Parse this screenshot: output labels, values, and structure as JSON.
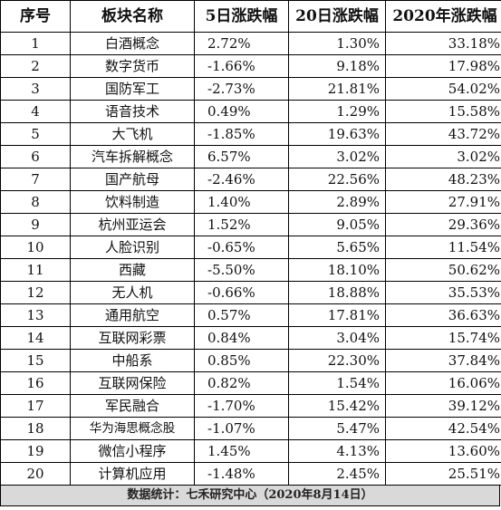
{
  "headers": [
    "序号",
    "板块名称",
    "5日涨跌幅",
    "20日涨跌幅",
    "2020年涨跌幅"
  ],
  "rows": [
    [
      "1",
      "白酒概念",
      "2.72%",
      "1.30%",
      "33.18%"
    ],
    [
      "2",
      "数字货币",
      "-1.66%",
      "9.18%",
      "17.98%"
    ],
    [
      "3",
      "国防军工",
      "-2.73%",
      "21.81%",
      "54.02%"
    ],
    [
      "4",
      "语音技术",
      "0.49%",
      "1.29%",
      "15.58%"
    ],
    [
      "5",
      "大飞机",
      "-1.85%",
      "19.63%",
      "43.72%"
    ],
    [
      "6",
      "汽车拆解概念",
      "6.57%",
      "3.02%",
      "3.02%"
    ],
    [
      "7",
      "国产航母",
      "-2.46%",
      "22.56%",
      "48.23%"
    ],
    [
      "8",
      "饮料制造",
      "1.40%",
      "2.89%",
      "27.91%"
    ],
    [
      "9",
      "杭州亚运会",
      "1.52%",
      "9.05%",
      "29.36%"
    ],
    [
      "10",
      "人脸识别",
      "-0.65%",
      "5.65%",
      "11.54%"
    ],
    [
      "11",
      "西藏",
      "-5.50%",
      "18.10%",
      "50.62%"
    ],
    [
      "12",
      "无人机",
      "-0.66%",
      "18.88%",
      "35.53%"
    ],
    [
      "13",
      "通用航空",
      "0.57%",
      "17.81%",
      "36.63%"
    ],
    [
      "14",
      "互联网彩票",
      "0.84%",
      "3.04%",
      "15.74%"
    ],
    [
      "15",
      "中船系",
      "0.85%",
      "22.30%",
      "37.84%"
    ],
    [
      "16",
      "互联网保险",
      "0.82%",
      "1.54%",
      "16.06%"
    ],
    [
      "17",
      "军民融合",
      "-1.70%",
      "15.42%",
      "39.12%"
    ],
    [
      "18",
      "华为海思概念股",
      "-1.07%",
      "5.47%",
      "42.54%"
    ],
    [
      "19",
      "微信小程序",
      "1.45%",
      "4.13%",
      "13.60%"
    ],
    [
      "20",
      "计算机应用",
      "-1.48%",
      "2.45%",
      "25.51%"
    ]
  ],
  "footer": "数据统计：七禾研究中心（2020年8月14日）"
}
